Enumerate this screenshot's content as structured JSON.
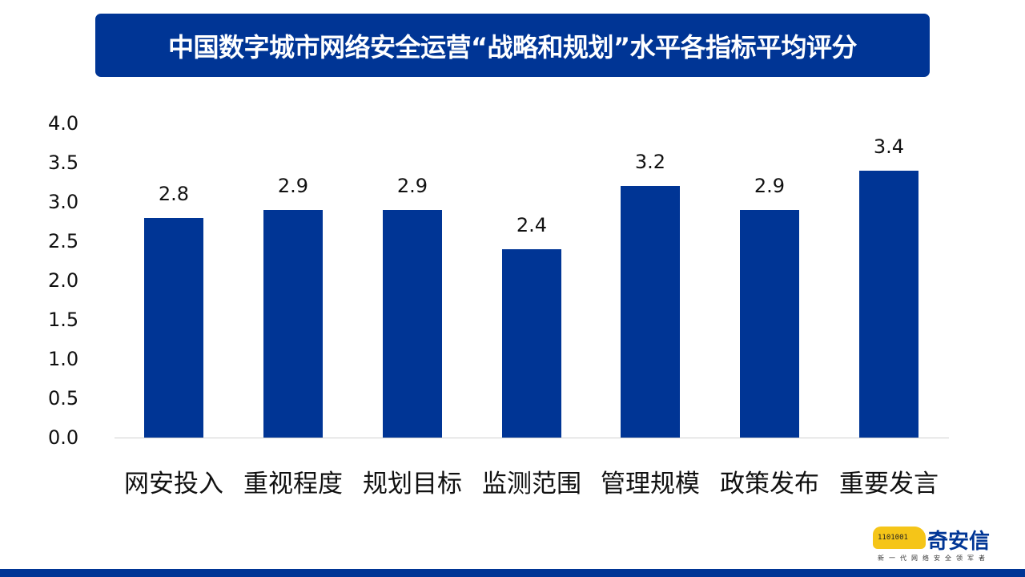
{
  "title": "中国数字城市网络安全运营“战略和规划”水平各指标平均评分",
  "chart_data": {
    "type": "bar",
    "title": "中国数字城市网络安全运营“战略和规划”水平各指标平均评分",
    "categories": [
      "网安投入",
      "重视程度",
      "规划目标",
      "监测范围",
      "管理规模",
      "政策发布",
      "重要发言"
    ],
    "values": [
      2.8,
      2.9,
      2.9,
      2.4,
      3.2,
      2.9,
      3.4
    ],
    "value_labels": [
      "2.8",
      "2.9",
      "2.9",
      "2.4",
      "3.2",
      "2.9",
      "3.4"
    ],
    "xlabel": "",
    "ylabel": "",
    "ylim": [
      0,
      4.0
    ],
    "yticks": [
      "4.0",
      "3.5",
      "3.0",
      "2.5",
      "2.0",
      "1.5",
      "1.0",
      "0.5",
      "0.0"
    ],
    "grid": false,
    "legend": null,
    "bar_color": "#003595"
  },
  "logo": {
    "name": "奇安信",
    "tagline": "新一代网络安全领军者",
    "binary": "1101001"
  },
  "colors": {
    "brand": "#003595",
    "logo_yellow": "#f5c518"
  }
}
